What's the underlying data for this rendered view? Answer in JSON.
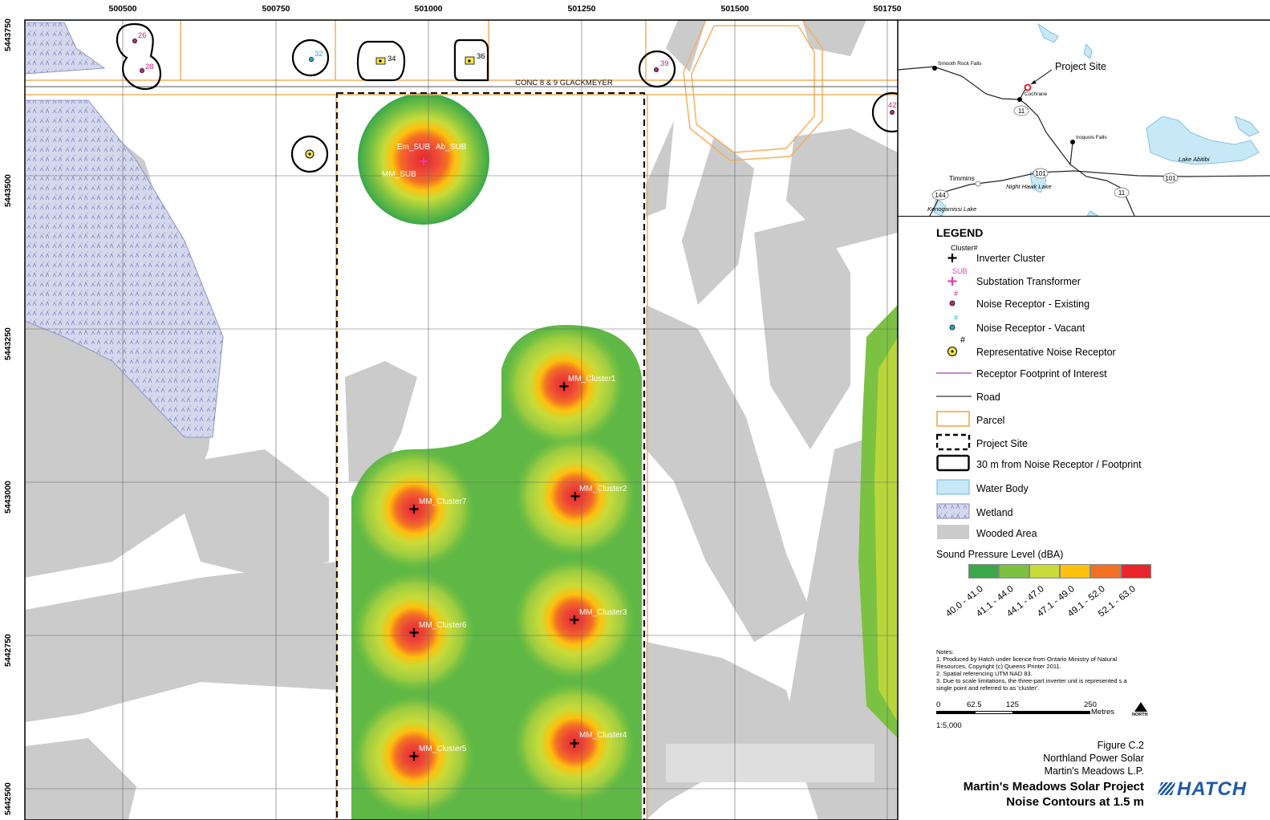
{
  "axes": {
    "x_ticks": [
      "500500",
      "500750",
      "501000",
      "501250",
      "501500",
      "501750"
    ],
    "y_ticks": [
      "5443750",
      "5443500",
      "5443250",
      "5443000",
      "5442750",
      "5442500"
    ]
  },
  "map": {
    "road_label": "CONC 8 & 9 GLACKMEYER",
    "receptors": [
      {
        "id": "26",
        "type": "existing"
      },
      {
        "id": "28",
        "type": "existing"
      },
      {
        "id": "32",
        "type": "vacant"
      },
      {
        "id": "34",
        "type": "representative"
      },
      {
        "id": "36",
        "type": "representative"
      },
      {
        "id": "39",
        "type": "existing"
      },
      {
        "id": "42",
        "type": "existing"
      }
    ],
    "substation_labels": [
      "Em_SUB",
      "Ab_SUB",
      "MM_SUB"
    ],
    "clusters": [
      "MM_Cluster1",
      "MM_Cluster2",
      "MM_Cluster3",
      "MM_Cluster4",
      "MM_Cluster5",
      "MM_Cluster6",
      "MM_Cluster7"
    ]
  },
  "inset": {
    "project_site_label": "Project Site",
    "places": [
      "Smooth Rock Falls",
      "Cochrane",
      "Iroquois Falls",
      "Lake Abitibi",
      "Timmins",
      "Night Hawk Lake",
      "Kenogamissi Lake"
    ],
    "highways": [
      "11",
      "101",
      "101",
      "11",
      "144"
    ]
  },
  "legend": {
    "title": "LEGEND",
    "items": [
      {
        "label": "Inverter Cluster",
        "sup": "Cluster#",
        "symbol": "black-cross-icon"
      },
      {
        "label": "Substation Transformer",
        "sup": "SUB",
        "symbol": "pink-cross-icon"
      },
      {
        "label": "Noise Receptor - Existing",
        "sup": "#",
        "symbol": "existing-receptor-icon"
      },
      {
        "label": "Noise Receptor - Vacant",
        "sup": "#",
        "symbol": "vacant-receptor-icon"
      },
      {
        "label": "Representative Noise Receptor",
        "sup": "#",
        "symbol": "representative-receptor-icon"
      },
      {
        "label": "Receptor Footprint of Interest",
        "symbol": "footprint-line-icon"
      },
      {
        "label": "Road",
        "symbol": "road-line-icon"
      },
      {
        "label": "Parcel",
        "symbol": "parcel-box-icon"
      },
      {
        "label": "Project Site",
        "symbol": "project-site-box-icon"
      },
      {
        "label": "30 m from Noise Receptor / Footprint",
        "symbol": "buffer-box-icon"
      },
      {
        "label": "Water Body",
        "symbol": "water-box-icon"
      },
      {
        "label": "Wetland",
        "symbol": "wetland-box-icon"
      },
      {
        "label": "Wooded Area",
        "symbol": "wooded-box-icon"
      }
    ],
    "spl_title": "Sound Pressure Level (dBA)",
    "spl_classes": [
      {
        "label": "40.0 - 41.0",
        "color": "#3aa84a"
      },
      {
        "label": "41.1 - 44.0",
        "color": "#7cc242"
      },
      {
        "label": "44.1 - 47.0",
        "color": "#c7db3a"
      },
      {
        "label": "47.1 - 49.0",
        "color": "#fdc10e"
      },
      {
        "label": "49.1 - 52.0",
        "color": "#f37024"
      },
      {
        "label": "52.1 - 63.0",
        "color": "#e9262b"
      }
    ],
    "notes_title": "Notes:",
    "notes": [
      "1. Produced by Hatch under licence from Ontario Ministry of Natural Resources, Copyright (c) Queens Printer 2011.",
      "2. Spatial referencing UTM NAD 83.",
      "3. Due to scale limitations, the three-part inverter unit is represented s a single point and referred to as 'cluster'."
    ],
    "scale_ticks": [
      "0",
      "62.5",
      "125",
      "250"
    ],
    "scale_unit": "Metres",
    "north_label": "NORTH",
    "scale_ratio": "1:5,000"
  },
  "title_block": {
    "figure": "Figure C.2",
    "client": "Northland Power Solar",
    "entity": "Martin's Meadows L.P.",
    "project": "Martin's Meadows Solar Project",
    "subtitle": "Noise Contours at 1.5 m",
    "logo_text": "HATCH"
  }
}
